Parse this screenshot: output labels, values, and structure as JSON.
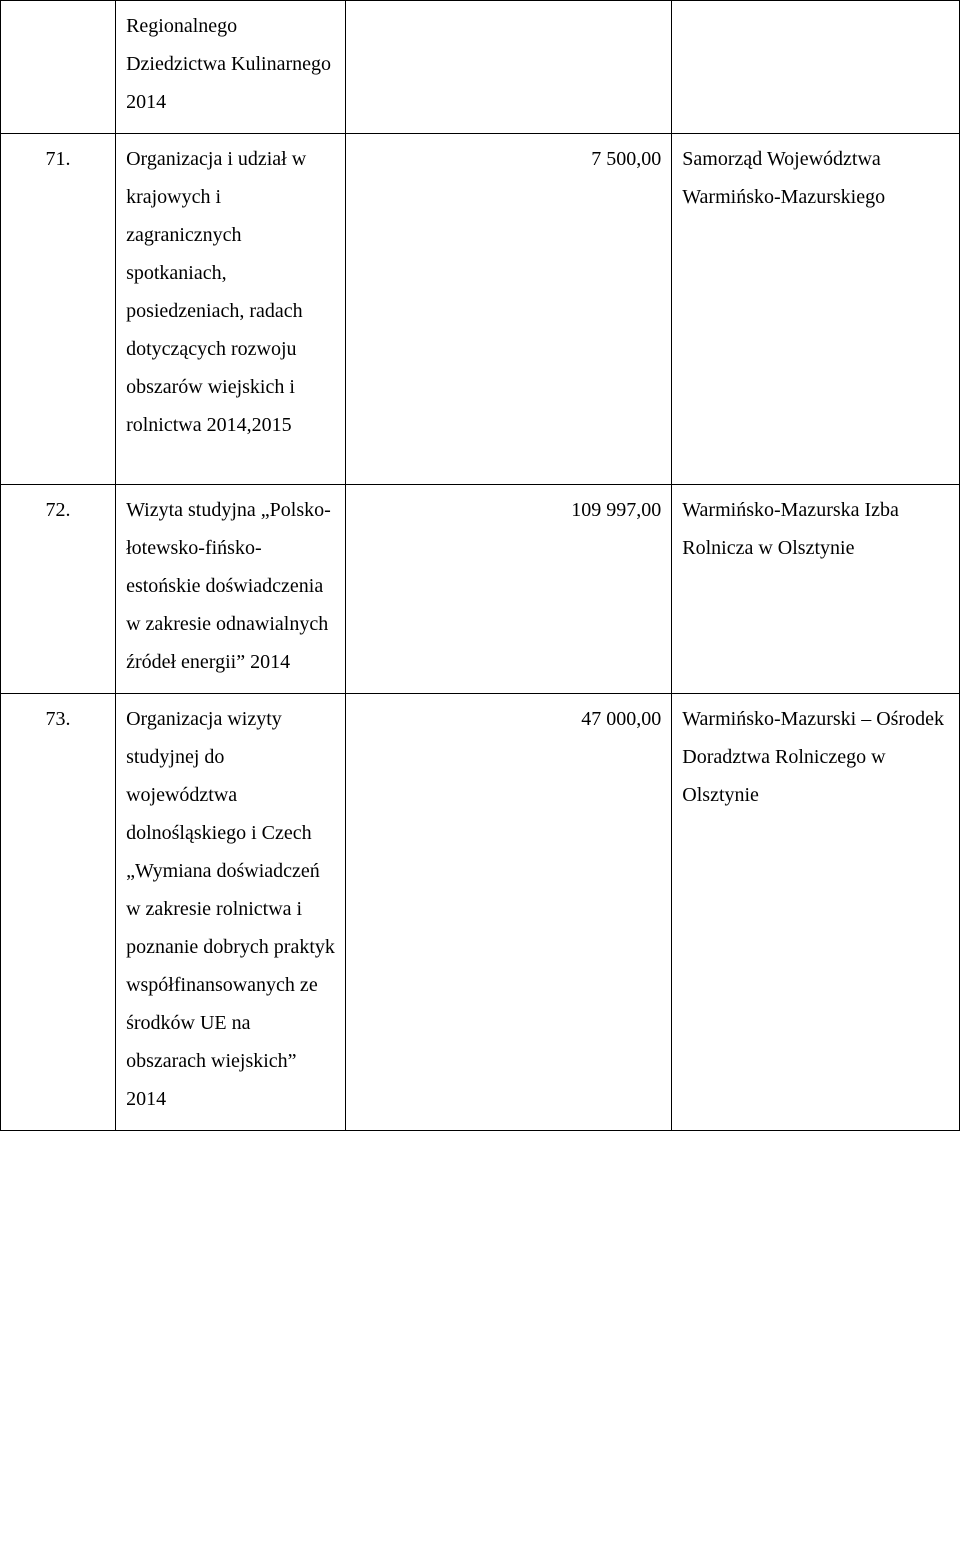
{
  "rows": [
    {
      "num": "",
      "desc": "Regionalnego Dziedzictwa Kulinarnego 2014",
      "amount": "",
      "org": ""
    },
    {
      "num": "71.",
      "desc": "Organizacja i udział w krajowych i zagranicznych spotkaniach, posiedzeniach, radach dotyczących rozwoju obszarów wiejskich i rolnictwa 2014,2015",
      "amount": "7 500,00",
      "org": "Samorząd Województwa Warmińsko-Mazurskiego"
    },
    {
      "num": "72.",
      "desc": "Wizyta studyjna „Polsko-łotewsko-fińsko-estońskie doświadczenia w zakresie odnawialnych źródeł energii” 2014",
      "amount": "109 997,00",
      "org": "Warmińsko-Mazurska Izba Rolnicza w Olsztynie"
    },
    {
      "num": "73.",
      "desc": "Organizacja wizyty studyjnej do województwa dolnośląskiego i Czech „Wymiana doświadczeń w zakresie rolnictwa i poznanie dobrych praktyk współfinansowanych ze środków UE na obszarach wiejskich” 2014",
      "amount": "47 000,00",
      "org": "Warmińsko-Mazurski – Ośrodek Doradztwa Rolniczego w Olsztynie"
    }
  ]
}
